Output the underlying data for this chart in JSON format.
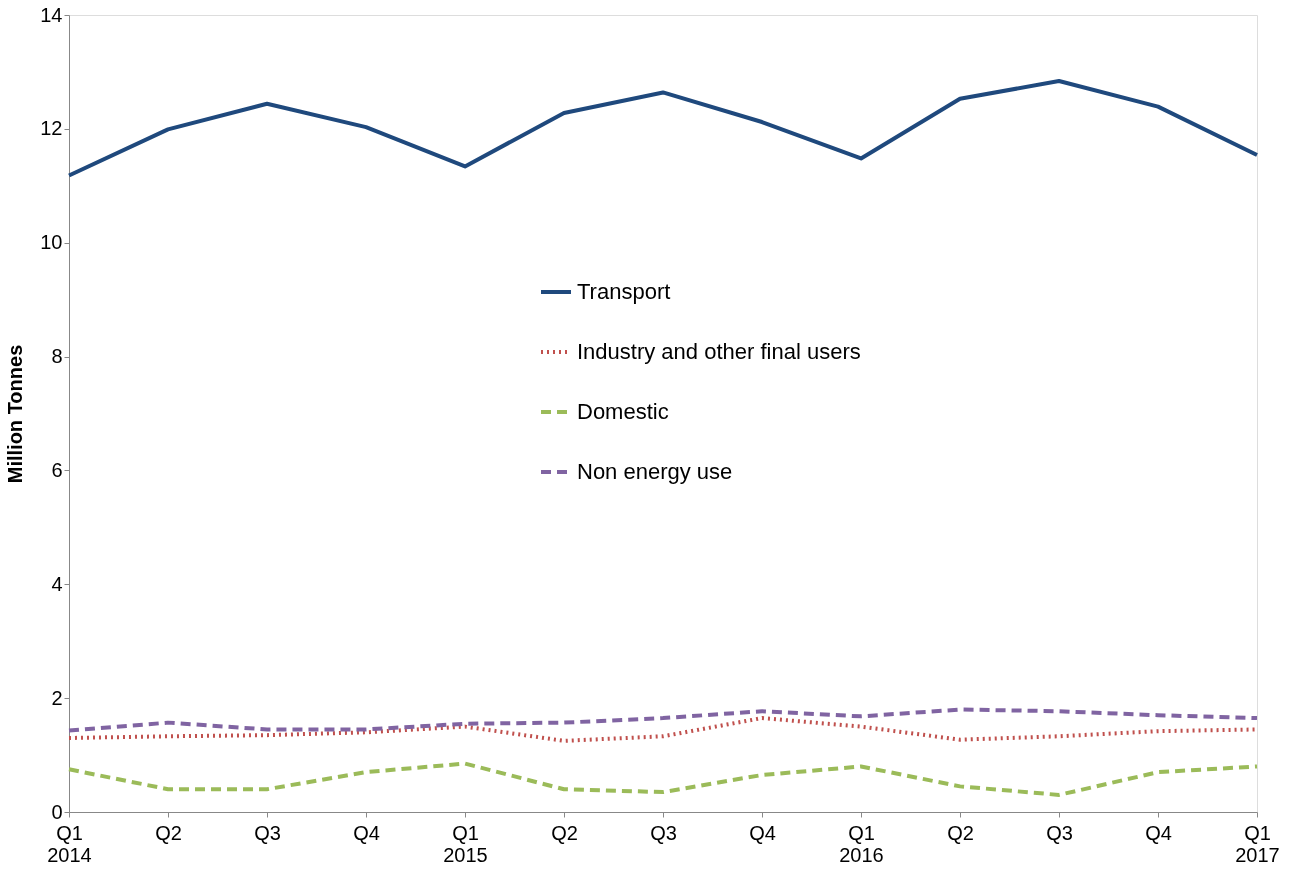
{
  "chart_data": {
    "type": "line",
    "ylabel": "Million Tonnes",
    "categories": [
      "Q1\n2014",
      "Q2",
      "Q3",
      "Q4",
      "Q1\n2015",
      "Q2",
      "Q3",
      "Q4",
      "Q1\n2016",
      "Q2",
      "Q3",
      "Q4",
      "Q1\n2017"
    ],
    "ylim": [
      0,
      14
    ],
    "yticks": [
      0,
      2,
      4,
      6,
      8,
      10,
      12,
      14
    ],
    "grid": false,
    "legend": "center",
    "marker": "none",
    "series": [
      {
        "name": "Transport",
        "color": "#1f497d",
        "line_style": "solid",
        "values": [
          11.18,
          11.99,
          12.44,
          12.03,
          11.34,
          12.28,
          12.64,
          12.12,
          11.48,
          12.53,
          12.84,
          12.39,
          11.54
        ]
      },
      {
        "name": "Industry and other final users",
        "color": "#c0504d",
        "line_style": "dotted",
        "values": [
          1.3,
          1.33,
          1.35,
          1.4,
          1.5,
          1.25,
          1.33,
          1.65,
          1.5,
          1.27,
          1.33,
          1.42,
          1.45
        ]
      },
      {
        "name": "Domestic",
        "color": "#9bbb59",
        "line_style": "dashed",
        "values": [
          0.75,
          0.4,
          0.4,
          0.7,
          0.85,
          0.4,
          0.35,
          0.65,
          0.8,
          0.45,
          0.3,
          0.7,
          0.8
        ]
      },
      {
        "name": "Non energy use",
        "color": "#8064a2",
        "line_style": "dashed",
        "values": [
          1.43,
          1.57,
          1.45,
          1.45,
          1.55,
          1.57,
          1.65,
          1.77,
          1.68,
          1.8,
          1.77,
          1.7,
          1.65
        ]
      }
    ]
  }
}
